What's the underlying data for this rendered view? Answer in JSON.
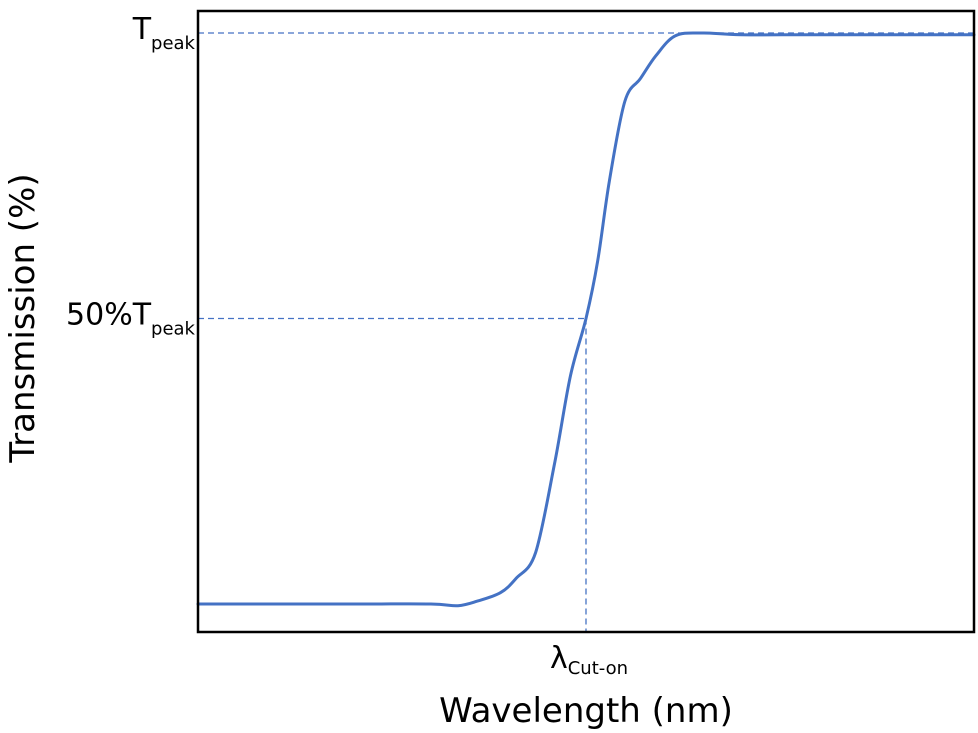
{
  "chart_data": {
    "type": "line",
    "title": "",
    "xlabel": "Wavelength (nm)",
    "ylabel": "Transmission (%)",
    "ylim": [
      0,
      100
    ],
    "grid": false,
    "legend": "none",
    "y_ticks": [
      {
        "value": 100,
        "main": "T",
        "sub": "peak"
      },
      {
        "value": 50,
        "main": "50%T",
        "sub": "peak"
      }
    ],
    "x_ticks": [
      {
        "value": 0,
        "main": "λ",
        "sub": "Cut-on"
      }
    ],
    "reference_lines": [
      {
        "axis": "y",
        "value": 100
      },
      {
        "axis": "y",
        "value": 50
      },
      {
        "axis": "x",
        "value": 0
      }
    ],
    "series": [
      {
        "color": "#4472c4",
        "points": [
          [
            -100,
            0
          ],
          [
            -60,
            0
          ],
          [
            -40,
            0
          ],
          [
            -33,
            -0.3
          ],
          [
            -28,
            0.5
          ],
          [
            -22,
            2
          ],
          [
            -18,
            4.5
          ],
          [
            -13,
            9
          ],
          [
            -8,
            25
          ],
          [
            -4,
            40
          ],
          [
            0,
            50
          ],
          [
            3,
            60
          ],
          [
            6,
            74
          ],
          [
            10,
            88
          ],
          [
            14,
            92
          ],
          [
            18,
            96
          ],
          [
            23,
            99.5
          ],
          [
            30,
            100
          ],
          [
            40,
            99.7
          ],
          [
            60,
            99.7
          ],
          [
            100,
            99.7
          ]
        ]
      }
    ],
    "colors": {
      "curve": "#4472c4",
      "reference": "#4472c4",
      "frame": "#000000"
    }
  }
}
